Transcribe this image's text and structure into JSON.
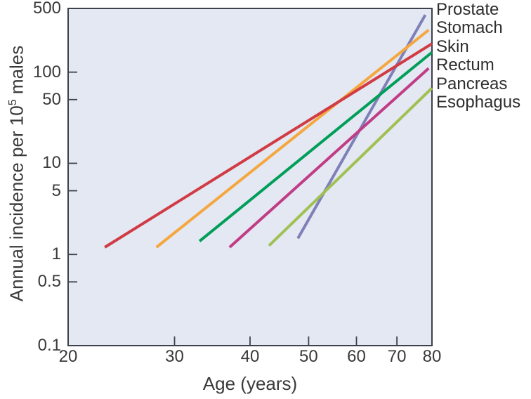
{
  "figure": {
    "xlabel": "Age (years)",
    "ylabel_pre": "Annual incidence per 10",
    "ylabel_sup": "5",
    "ylabel_post": " males"
  },
  "chart_data": {
    "type": "line",
    "title": "",
    "xlabel": "Age (years)",
    "ylabel": "Annual incidence per 10^5 males",
    "x_scale": "log",
    "y_scale": "log",
    "xlim": [
      20,
      80
    ],
    "ylim": [
      0.1,
      500
    ],
    "x_ticks": [
      20,
      30,
      40,
      50,
      60,
      70,
      80
    ],
    "y_ticks": [
      500,
      100,
      50,
      10,
      5,
      1,
      0.5,
      0.1
    ],
    "grid": false,
    "plot_background": "#e3e8f3",
    "axis_color": "#3c414b",
    "legend_position": "right-outside",
    "line_width": 4,
    "series": [
      {
        "name": "Prostate",
        "color": "#8080b8",
        "points": [
          [
            48,
            1.5
          ],
          [
            78,
            425
          ]
        ]
      },
      {
        "name": "Stomach",
        "color": "#f5a73e",
        "points": [
          [
            28,
            1.2
          ],
          [
            79,
            290
          ]
        ]
      },
      {
        "name": "Skin",
        "color": "#d13b44",
        "points": [
          [
            23,
            1.2
          ],
          [
            80,
            205
          ]
        ]
      },
      {
        "name": "Rectum",
        "color": "#009e59",
        "points": [
          [
            33,
            1.4
          ],
          [
            80,
            165
          ]
        ]
      },
      {
        "name": "Pancreas",
        "color": "#c13b85",
        "points": [
          [
            37,
            1.2
          ],
          [
            79,
            110
          ]
        ]
      },
      {
        "name": "Esophagus",
        "color": "#a0c052",
        "points": [
          [
            43,
            1.25
          ],
          [
            80,
            67
          ]
        ]
      }
    ]
  }
}
